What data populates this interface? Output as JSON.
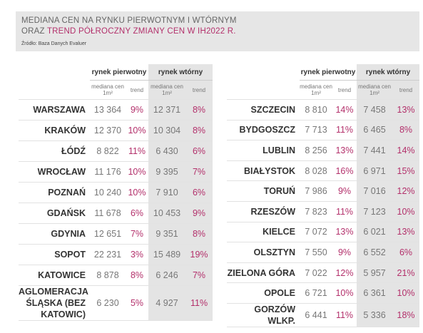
{
  "header": {
    "title_line1": "MEDIANA CEN NA RYNKU PIERWOTNYM I WTÓRNYM",
    "title_line2_prefix": "ORAZ",
    "title_line2_highlight": "TREND PÓŁROCZNY ZMIANY CEN W IH2022 R.",
    "source": "Źródło: Baza Danych Evaluer"
  },
  "tables": [
    {
      "groups": [
        "rynek pierwotny",
        "rynek wtórny"
      ],
      "subheaders": [
        "mediana cen 1m²",
        "trend",
        "mediana cen 1m²",
        "trend"
      ],
      "rows": [
        [
          "WARSZAWA",
          "13 364",
          "9%",
          "12 371",
          "8%"
        ],
        [
          "KRAKÓW",
          "12 370",
          "10%",
          "10 304",
          "8%"
        ],
        [
          "ŁÓDŹ",
          "8 822",
          "11%",
          "6 430",
          "6%"
        ],
        [
          "WROCŁAW",
          "11 176",
          "10%",
          "9 395",
          "7%"
        ],
        [
          "POZNAŃ",
          "10 240",
          "10%",
          "7 910",
          "6%"
        ],
        [
          "GDAŃSK",
          "11 678",
          "6%",
          "10 453",
          "9%"
        ],
        [
          "GDYNIA",
          "12 651",
          "7%",
          "9 351",
          "8%"
        ],
        [
          "SOPOT",
          "22 231",
          "3%",
          "15 489",
          "19%"
        ],
        [
          "KATOWICE",
          "8 878",
          "8%",
          "6 246",
          "7%"
        ],
        [
          "AGLOMERACJA ŚLĄSKA (BEZ KATOWIC)",
          "6 230",
          "5%",
          "4 927",
          "11%"
        ]
      ]
    },
    {
      "groups": [
        "rynek pierwotny",
        "rynek wtórny"
      ],
      "subheaders": [
        "mediana cen 1m²",
        "trend",
        "mediana cen 1m²",
        "trend"
      ],
      "rows": [
        [
          "SZCZECIN",
          "8 810",
          "14%",
          "7 458",
          "13%"
        ],
        [
          "BYDGOSZCZ",
          "7 713",
          "11%",
          "6 465",
          "8%"
        ],
        [
          "LUBLIN",
          "8 256",
          "13%",
          "7 441",
          "14%"
        ],
        [
          "BIAŁYSTOK",
          "8 028",
          "16%",
          "6 971",
          "15%"
        ],
        [
          "TORUŃ",
          "7 986",
          "9%",
          "7 016",
          "12%"
        ],
        [
          "RZESZÓW",
          "7 823",
          "11%",
          "7 123",
          "10%"
        ],
        [
          "KIELCE",
          "7 072",
          "13%",
          "6 021",
          "13%"
        ],
        [
          "OLSZTYN",
          "7 550",
          "9%",
          "6 552",
          "6%"
        ],
        [
          "ZIELONA GÓRA",
          "7 022",
          "12%",
          "5 957",
          "21%"
        ],
        [
          "OPOLE",
          "6 721",
          "10%",
          "6 361",
          "10%"
        ],
        [
          "GORZÓW WLKP.",
          "6 441",
          "11%",
          "5 336",
          "18%"
        ]
      ]
    }
  ]
}
